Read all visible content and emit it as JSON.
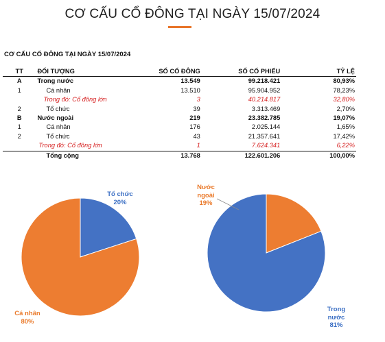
{
  "header": {
    "title": "CƠ CẤU CỔ ĐÔNG TẠI NGÀY 15/07/2024",
    "section_title": "CƠ CẤU CỔ ĐÔNG TẠI NGÀY 15/07/2024"
  },
  "table": {
    "columns": [
      "TT",
      "ĐỐI TƯỢNG",
      "SỐ CỔ ĐÔNG",
      "SỐ CỔ PHIẾU",
      "TỶ LỆ"
    ],
    "rows": [
      {
        "tt": "A",
        "label": "Trong nước",
        "holders": "13.549",
        "shares": "99.218.421",
        "pct": "80,93%"
      },
      {
        "tt": "1",
        "label": "Cá nhân",
        "holders": "13.510",
        "shares": "95.904.952",
        "pct": "78,23%"
      },
      {
        "tt": "",
        "label": "Trong đó: Cổ đông lớn",
        "holders": "3",
        "shares": "40.214.817",
        "pct": "32,80%"
      },
      {
        "tt": "2",
        "label": "Tổ chức",
        "holders": "39",
        "shares": "3.313.469",
        "pct": "2,70%"
      },
      {
        "tt": "B",
        "label": "Nước ngoài",
        "holders": "219",
        "shares": "23.382.785",
        "pct": "19,07%"
      },
      {
        "tt": "1",
        "label": "Cá nhân",
        "holders": "176",
        "shares": "2.025.144",
        "pct": "1,65%"
      },
      {
        "tt": "2",
        "label": "Tổ chức",
        "holders": "43",
        "shares": "21.357.641",
        "pct": "17,42%"
      },
      {
        "tt": "",
        "label": "Trong đó: Cổ đông lớn",
        "holders": "1",
        "shares": "7.624.341",
        "pct": "6,22%"
      }
    ],
    "total": {
      "label": "Tổng cộng",
      "holders": "13.768",
      "shares": "122.601.206",
      "pct": "100,00%"
    }
  },
  "colors": {
    "blue": "#4472c4",
    "orange": "#ed7d31"
  },
  "chart_data": [
    {
      "type": "pie",
      "slices": [
        {
          "label": "Tổ chức",
          "pct_label": "20%",
          "value": 20,
          "color": "#4472c4"
        },
        {
          "label": "Cá nhân",
          "pct_label": "80%",
          "value": 80,
          "color": "#ed7d31"
        }
      ]
    },
    {
      "type": "pie",
      "slices": [
        {
          "label": "Nước ngoài",
          "pct_label": "19%",
          "value": 19,
          "color": "#ed7d31"
        },
        {
          "label": "Trong nước",
          "pct_label": "81%",
          "value": 81,
          "color": "#4472c4"
        }
      ]
    }
  ]
}
